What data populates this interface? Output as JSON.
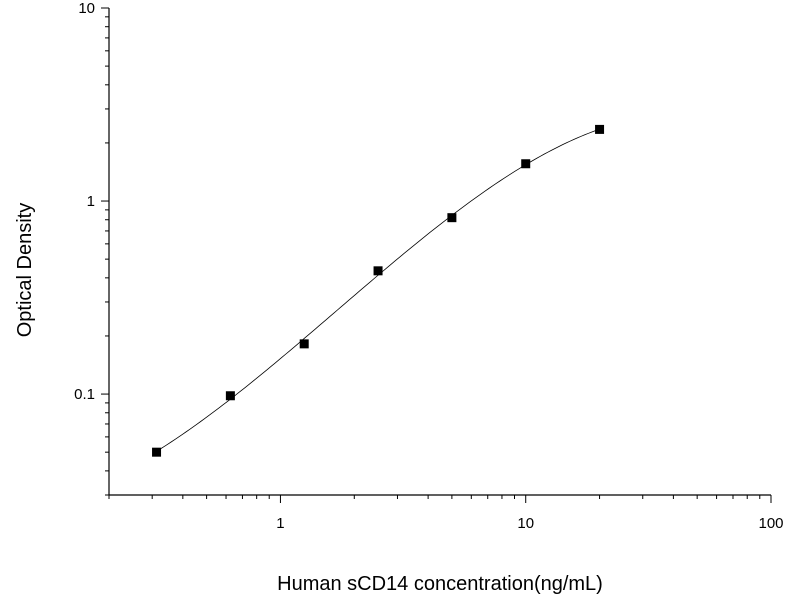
{
  "chart_data": {
    "type": "scatter",
    "xlabel": "Human sCD14 concentration(ng/mL)",
    "ylabel": "Optical Density",
    "xscale": "log",
    "yscale": "log",
    "xlim": [
      0.2,
      100
    ],
    "ylim": [
      0.03,
      10
    ],
    "x_ticks": [
      {
        "value": 1,
        "label": "1"
      },
      {
        "value": 10,
        "label": "10"
      },
      {
        "value": 100,
        "label": "100"
      }
    ],
    "y_ticks": [
      {
        "value": 0.1,
        "label": "0.1"
      },
      {
        "value": 1,
        "label": "1"
      },
      {
        "value": 10,
        "label": "10"
      }
    ],
    "grid": false,
    "legend": "none",
    "series": [
      {
        "marker": "square",
        "x": [
          0.3125,
          0.625,
          1.25,
          2.5,
          5,
          10,
          20
        ],
        "y": [
          0.05,
          0.098,
          0.182,
          0.435,
          0.82,
          1.56,
          2.35
        ],
        "fit_curve": true
      }
    ]
  }
}
